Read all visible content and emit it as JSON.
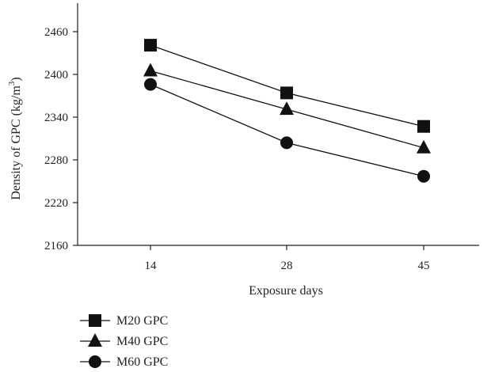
{
  "chart_data": {
    "type": "line",
    "title": "",
    "xlabel": "Exposure days",
    "ylabel": "Density of GPC (kg/m",
    "ylabel_sup": "3",
    "ylabel_close": ")",
    "categories": [
      "14",
      "28",
      "45"
    ],
    "ylim": [
      2160,
      2500
    ],
    "yticks": [
      2160,
      2220,
      2280,
      2340,
      2400,
      2460
    ],
    "grid": false,
    "legend_position": "bottom-left",
    "series": [
      {
        "name": "M20 GPC",
        "marker": "square",
        "values": [
          2441,
          2374,
          2327
        ]
      },
      {
        "name": "M40 GPC",
        "marker": "triangle",
        "values": [
          2405,
          2351,
          2297
        ]
      },
      {
        "name": "M60 GPC",
        "marker": "circle",
        "values": [
          2386,
          2304,
          2257
        ]
      }
    ]
  }
}
